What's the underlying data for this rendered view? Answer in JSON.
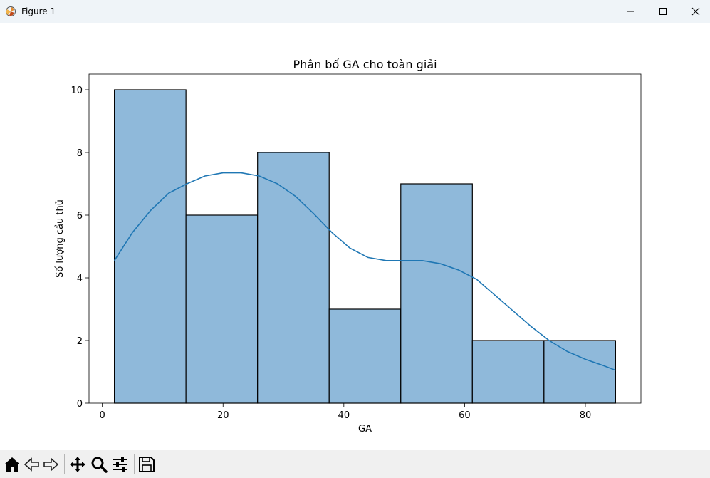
{
  "window": {
    "title": "Figure 1"
  },
  "colors": {
    "bar_fill": "#8fb9da",
    "bar_edge": "#000000",
    "kde_line": "#1f77b4"
  },
  "toolbar": {
    "buttons": [
      "home-icon",
      "back-arrow-icon",
      "forward-arrow-icon",
      "pan-icon",
      "zoom-icon",
      "configure-subplots-icon",
      "save-icon"
    ]
  },
  "chart_data": {
    "type": "bar",
    "title": "Phân bố GA cho toàn giải",
    "xlabel": "GA",
    "ylabel": "Số lượng cầu thủ",
    "bins": [
      [
        2,
        13.857
      ],
      [
        13.857,
        25.714
      ],
      [
        25.714,
        37.571
      ],
      [
        37.571,
        49.429
      ],
      [
        49.429,
        61.286
      ],
      [
        61.286,
        73.143
      ],
      [
        73.143,
        85
      ]
    ],
    "values": [
      10,
      6,
      8,
      3,
      7,
      2,
      2
    ],
    "xlim": [
      -2.2,
      89.2
    ],
    "ylim": [
      0,
      10.5
    ],
    "xticks": [
      0,
      20,
      40,
      60,
      80
    ],
    "yticks": [
      0,
      2,
      4,
      6,
      8,
      10
    ],
    "kde": {
      "x": [
        2,
        5,
        8,
        11,
        14,
        17,
        20,
        23,
        26,
        29,
        32,
        35,
        38,
        41,
        44,
        47,
        50,
        53,
        56,
        59,
        62,
        65,
        68,
        71,
        74,
        77,
        80,
        83,
        85
      ],
      "y": [
        4.55,
        5.45,
        6.15,
        6.7,
        7.0,
        7.25,
        7.35,
        7.35,
        7.25,
        7.0,
        6.6,
        6.05,
        5.45,
        4.95,
        4.65,
        4.55,
        4.55,
        4.55,
        4.45,
        4.25,
        3.95,
        3.45,
        2.95,
        2.45,
        2.0,
        1.65,
        1.4,
        1.2,
        1.05
      ]
    },
    "grid": false,
    "legend": "none"
  }
}
